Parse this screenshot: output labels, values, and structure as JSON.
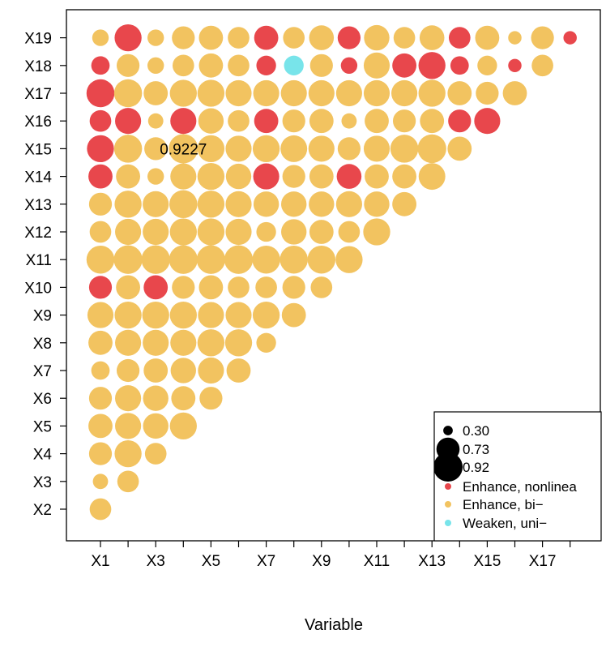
{
  "chart_data": {
    "type": "scatter",
    "xlabel": "Variable",
    "ylabel": "",
    "x_tick_labels": [
      "X1",
      "X3",
      "X5",
      "X7",
      "X9",
      "X11",
      "X13",
      "X15",
      "X17"
    ],
    "x_tick_count": 18,
    "y_tick_labels": [
      "X2",
      "X3",
      "X4",
      "X5",
      "X6",
      "X7",
      "X8",
      "X9",
      "X10",
      "X11",
      "X12",
      "X13",
      "X14",
      "X15",
      "X16",
      "X17",
      "X18",
      "X19"
    ],
    "annotation": {
      "text": "0.9227",
      "x": 4,
      "y": 15
    },
    "legend": {
      "placement": "bottom-right",
      "sizes": [
        {
          "label": "0.30",
          "value": 0.3
        },
        {
          "label": "0.73",
          "value": 0.73
        },
        {
          "label": "0.92",
          "value": 0.92
        }
      ],
      "categories": [
        {
          "key": "enh_nl",
          "label": "Enhance, nonlinea",
          "color": "#E8474C"
        },
        {
          "key": "enh_bi",
          "label": "Enhance, bi−",
          "color": "#F2C360"
        },
        {
          "key": "weak_uni",
          "label": "Weaken, uni−",
          "color": "#78E4EA"
        }
      ]
    },
    "points": [
      {
        "x": 1,
        "y": 2,
        "v": 0.68,
        "c": "enh_bi"
      },
      {
        "x": 1,
        "y": 3,
        "v": 0.48,
        "c": "enh_bi"
      },
      {
        "x": 2,
        "y": 3,
        "v": 0.68,
        "c": "enh_bi"
      },
      {
        "x": 1,
        "y": 4,
        "v": 0.72,
        "c": "enh_bi"
      },
      {
        "x": 2,
        "y": 4,
        "v": 0.85,
        "c": "enh_bi"
      },
      {
        "x": 3,
        "y": 4,
        "v": 0.68,
        "c": "enh_bi"
      },
      {
        "x": 1,
        "y": 5,
        "v": 0.76,
        "c": "enh_bi"
      },
      {
        "x": 2,
        "y": 5,
        "v": 0.82,
        "c": "enh_bi"
      },
      {
        "x": 3,
        "y": 5,
        "v": 0.8,
        "c": "enh_bi"
      },
      {
        "x": 4,
        "y": 5,
        "v": 0.85,
        "c": "enh_bi"
      },
      {
        "x": 1,
        "y": 6,
        "v": 0.72,
        "c": "enh_bi"
      },
      {
        "x": 2,
        "y": 6,
        "v": 0.82,
        "c": "enh_bi"
      },
      {
        "x": 3,
        "y": 6,
        "v": 0.8,
        "c": "enh_bi"
      },
      {
        "x": 4,
        "y": 6,
        "v": 0.76,
        "c": "enh_bi"
      },
      {
        "x": 5,
        "y": 6,
        "v": 0.72,
        "c": "enh_bi"
      },
      {
        "x": 1,
        "y": 7,
        "v": 0.58,
        "c": "enh_bi"
      },
      {
        "x": 2,
        "y": 7,
        "v": 0.72,
        "c": "enh_bi"
      },
      {
        "x": 3,
        "y": 7,
        "v": 0.76,
        "c": "enh_bi"
      },
      {
        "x": 4,
        "y": 7,
        "v": 0.8,
        "c": "enh_bi"
      },
      {
        "x": 5,
        "y": 7,
        "v": 0.82,
        "c": "enh_bi"
      },
      {
        "x": 6,
        "y": 7,
        "v": 0.76,
        "c": "enh_bi"
      },
      {
        "x": 1,
        "y": 8,
        "v": 0.76,
        "c": "enh_bi"
      },
      {
        "x": 2,
        "y": 8,
        "v": 0.82,
        "c": "enh_bi"
      },
      {
        "x": 3,
        "y": 8,
        "v": 0.82,
        "c": "enh_bi"
      },
      {
        "x": 4,
        "y": 8,
        "v": 0.82,
        "c": "enh_bi"
      },
      {
        "x": 5,
        "y": 8,
        "v": 0.85,
        "c": "enh_bi"
      },
      {
        "x": 6,
        "y": 8,
        "v": 0.85,
        "c": "enh_bi"
      },
      {
        "x": 7,
        "y": 8,
        "v": 0.62,
        "c": "enh_bi"
      },
      {
        "x": 1,
        "y": 9,
        "v": 0.82,
        "c": "enh_bi"
      },
      {
        "x": 2,
        "y": 9,
        "v": 0.85,
        "c": "enh_bi"
      },
      {
        "x": 3,
        "y": 9,
        "v": 0.85,
        "c": "enh_bi"
      },
      {
        "x": 4,
        "y": 9,
        "v": 0.85,
        "c": "enh_bi"
      },
      {
        "x": 5,
        "y": 9,
        "v": 0.82,
        "c": "enh_bi"
      },
      {
        "x": 6,
        "y": 9,
        "v": 0.82,
        "c": "enh_bi"
      },
      {
        "x": 7,
        "y": 9,
        "v": 0.85,
        "c": "enh_bi"
      },
      {
        "x": 8,
        "y": 9,
        "v": 0.76,
        "c": "enh_bi"
      },
      {
        "x": 1,
        "y": 10,
        "v": 0.72,
        "c": "enh_nl"
      },
      {
        "x": 2,
        "y": 10,
        "v": 0.76,
        "c": "enh_bi"
      },
      {
        "x": 3,
        "y": 10,
        "v": 0.76,
        "c": "enh_nl"
      },
      {
        "x": 4,
        "y": 10,
        "v": 0.72,
        "c": "enh_bi"
      },
      {
        "x": 5,
        "y": 10,
        "v": 0.76,
        "c": "enh_bi"
      },
      {
        "x": 6,
        "y": 10,
        "v": 0.68,
        "c": "enh_bi"
      },
      {
        "x": 7,
        "y": 10,
        "v": 0.68,
        "c": "enh_bi"
      },
      {
        "x": 8,
        "y": 10,
        "v": 0.72,
        "c": "enh_bi"
      },
      {
        "x": 9,
        "y": 10,
        "v": 0.68,
        "c": "enh_bi"
      },
      {
        "x": 1,
        "y": 11,
        "v": 0.88,
        "c": "enh_bi"
      },
      {
        "x": 2,
        "y": 11,
        "v": 0.9,
        "c": "enh_bi"
      },
      {
        "x": 3,
        "y": 11,
        "v": 0.9,
        "c": "enh_bi"
      },
      {
        "x": 4,
        "y": 11,
        "v": 0.9,
        "c": "enh_bi"
      },
      {
        "x": 5,
        "y": 11,
        "v": 0.9,
        "c": "enh_bi"
      },
      {
        "x": 6,
        "y": 11,
        "v": 0.9,
        "c": "enh_bi"
      },
      {
        "x": 7,
        "y": 11,
        "v": 0.88,
        "c": "enh_bi"
      },
      {
        "x": 8,
        "y": 11,
        "v": 0.88,
        "c": "enh_bi"
      },
      {
        "x": 9,
        "y": 11,
        "v": 0.88,
        "c": "enh_bi"
      },
      {
        "x": 10,
        "y": 11,
        "v": 0.85,
        "c": "enh_bi"
      },
      {
        "x": 1,
        "y": 12,
        "v": 0.68,
        "c": "enh_bi"
      },
      {
        "x": 2,
        "y": 12,
        "v": 0.82,
        "c": "enh_bi"
      },
      {
        "x": 3,
        "y": 12,
        "v": 0.82,
        "c": "enh_bi"
      },
      {
        "x": 4,
        "y": 12,
        "v": 0.85,
        "c": "enh_bi"
      },
      {
        "x": 5,
        "y": 12,
        "v": 0.85,
        "c": "enh_bi"
      },
      {
        "x": 6,
        "y": 12,
        "v": 0.82,
        "c": "enh_bi"
      },
      {
        "x": 7,
        "y": 12,
        "v": 0.62,
        "c": "enh_bi"
      },
      {
        "x": 8,
        "y": 12,
        "v": 0.8,
        "c": "enh_bi"
      },
      {
        "x": 9,
        "y": 12,
        "v": 0.76,
        "c": "enh_bi"
      },
      {
        "x": 10,
        "y": 12,
        "v": 0.68,
        "c": "enh_bi"
      },
      {
        "x": 11,
        "y": 12,
        "v": 0.85,
        "c": "enh_bi"
      },
      {
        "x": 1,
        "y": 13,
        "v": 0.72,
        "c": "enh_bi"
      },
      {
        "x": 2,
        "y": 13,
        "v": 0.85,
        "c": "enh_bi"
      },
      {
        "x": 3,
        "y": 13,
        "v": 0.82,
        "c": "enh_bi"
      },
      {
        "x": 4,
        "y": 13,
        "v": 0.88,
        "c": "enh_bi"
      },
      {
        "x": 5,
        "y": 13,
        "v": 0.85,
        "c": "enh_bi"
      },
      {
        "x": 6,
        "y": 13,
        "v": 0.82,
        "c": "enh_bi"
      },
      {
        "x": 7,
        "y": 13,
        "v": 0.8,
        "c": "enh_bi"
      },
      {
        "x": 8,
        "y": 13,
        "v": 0.8,
        "c": "enh_bi"
      },
      {
        "x": 9,
        "y": 13,
        "v": 0.8,
        "c": "enh_bi"
      },
      {
        "x": 10,
        "y": 13,
        "v": 0.82,
        "c": "enh_bi"
      },
      {
        "x": 11,
        "y": 13,
        "v": 0.8,
        "c": "enh_bi"
      },
      {
        "x": 12,
        "y": 13,
        "v": 0.76,
        "c": "enh_bi"
      },
      {
        "x": 1,
        "y": 14,
        "v": 0.76,
        "c": "enh_nl"
      },
      {
        "x": 2,
        "y": 14,
        "v": 0.76,
        "c": "enh_bi"
      },
      {
        "x": 3,
        "y": 14,
        "v": 0.52,
        "c": "enh_bi"
      },
      {
        "x": 4,
        "y": 14,
        "v": 0.82,
        "c": "enh_bi"
      },
      {
        "x": 5,
        "y": 14,
        "v": 0.85,
        "c": "enh_bi"
      },
      {
        "x": 6,
        "y": 14,
        "v": 0.8,
        "c": "enh_bi"
      },
      {
        "x": 7,
        "y": 14,
        "v": 0.82,
        "c": "enh_nl"
      },
      {
        "x": 8,
        "y": 14,
        "v": 0.72,
        "c": "enh_bi"
      },
      {
        "x": 9,
        "y": 14,
        "v": 0.76,
        "c": "enh_bi"
      },
      {
        "x": 10,
        "y": 14,
        "v": 0.78,
        "c": "enh_nl"
      },
      {
        "x": 11,
        "y": 14,
        "v": 0.76,
        "c": "enh_bi"
      },
      {
        "x": 12,
        "y": 14,
        "v": 0.76,
        "c": "enh_bi"
      },
      {
        "x": 13,
        "y": 14,
        "v": 0.84,
        "c": "enh_bi"
      },
      {
        "x": 1,
        "y": 15,
        "v": 0.85,
        "c": "enh_nl"
      },
      {
        "x": 2,
        "y": 15,
        "v": 0.88,
        "c": "enh_bi"
      },
      {
        "x": 3,
        "y": 15,
        "v": 0.72,
        "c": "enh_bi"
      },
      {
        "x": 4,
        "y": 15,
        "v": 0.9227,
        "c": "enh_bi"
      },
      {
        "x": 5,
        "y": 15,
        "v": 0.85,
        "c": "enh_bi"
      },
      {
        "x": 6,
        "y": 15,
        "v": 0.82,
        "c": "enh_bi"
      },
      {
        "x": 7,
        "y": 15,
        "v": 0.85,
        "c": "enh_bi"
      },
      {
        "x": 8,
        "y": 15,
        "v": 0.84,
        "c": "enh_bi"
      },
      {
        "x": 9,
        "y": 15,
        "v": 0.82,
        "c": "enh_bi"
      },
      {
        "x": 10,
        "y": 15,
        "v": 0.72,
        "c": "enh_bi"
      },
      {
        "x": 11,
        "y": 15,
        "v": 0.82,
        "c": "enh_bi"
      },
      {
        "x": 12,
        "y": 15,
        "v": 0.88,
        "c": "enh_bi"
      },
      {
        "x": 13,
        "y": 15,
        "v": 0.9,
        "c": "enh_bi"
      },
      {
        "x": 14,
        "y": 15,
        "v": 0.76,
        "c": "enh_bi"
      },
      {
        "x": 1,
        "y": 16,
        "v": 0.68,
        "c": "enh_nl"
      },
      {
        "x": 2,
        "y": 16,
        "v": 0.82,
        "c": "enh_nl"
      },
      {
        "x": 3,
        "y": 16,
        "v": 0.48,
        "c": "enh_bi"
      },
      {
        "x": 4,
        "y": 16,
        "v": 0.82,
        "c": "enh_nl"
      },
      {
        "x": 5,
        "y": 16,
        "v": 0.8,
        "c": "enh_bi"
      },
      {
        "x": 6,
        "y": 16,
        "v": 0.68,
        "c": "enh_bi"
      },
      {
        "x": 7,
        "y": 16,
        "v": 0.76,
        "c": "enh_nl"
      },
      {
        "x": 8,
        "y": 16,
        "v": 0.72,
        "c": "enh_bi"
      },
      {
        "x": 9,
        "y": 16,
        "v": 0.76,
        "c": "enh_bi"
      },
      {
        "x": 10,
        "y": 16,
        "v": 0.48,
        "c": "enh_bi"
      },
      {
        "x": 11,
        "y": 16,
        "v": 0.76,
        "c": "enh_bi"
      },
      {
        "x": 12,
        "y": 16,
        "v": 0.72,
        "c": "enh_bi"
      },
      {
        "x": 13,
        "y": 16,
        "v": 0.76,
        "c": "enh_bi"
      },
      {
        "x": 14,
        "y": 16,
        "v": 0.72,
        "c": "enh_nl"
      },
      {
        "x": 15,
        "y": 16,
        "v": 0.82,
        "c": "enh_nl"
      },
      {
        "x": 1,
        "y": 17,
        "v": 0.88,
        "c": "enh_nl"
      },
      {
        "x": 2,
        "y": 17,
        "v": 0.88,
        "c": "enh_bi"
      },
      {
        "x": 3,
        "y": 17,
        "v": 0.76,
        "c": "enh_bi"
      },
      {
        "x": 4,
        "y": 17,
        "v": 0.85,
        "c": "enh_bi"
      },
      {
        "x": 5,
        "y": 17,
        "v": 0.85,
        "c": "enh_bi"
      },
      {
        "x": 6,
        "y": 17,
        "v": 0.82,
        "c": "enh_bi"
      },
      {
        "x": 7,
        "y": 17,
        "v": 0.82,
        "c": "enh_bi"
      },
      {
        "x": 8,
        "y": 17,
        "v": 0.82,
        "c": "enh_bi"
      },
      {
        "x": 9,
        "y": 17,
        "v": 0.82,
        "c": "enh_bi"
      },
      {
        "x": 10,
        "y": 17,
        "v": 0.82,
        "c": "enh_bi"
      },
      {
        "x": 11,
        "y": 17,
        "v": 0.82,
        "c": "enh_bi"
      },
      {
        "x": 12,
        "y": 17,
        "v": 0.82,
        "c": "enh_bi"
      },
      {
        "x": 13,
        "y": 17,
        "v": 0.85,
        "c": "enh_bi"
      },
      {
        "x": 14,
        "y": 17,
        "v": 0.76,
        "c": "enh_bi"
      },
      {
        "x": 15,
        "y": 17,
        "v": 0.72,
        "c": "enh_bi"
      },
      {
        "x": 16,
        "y": 17,
        "v": 0.76,
        "c": "enh_bi"
      },
      {
        "x": 1,
        "y": 18,
        "v": 0.58,
        "c": "enh_nl"
      },
      {
        "x": 2,
        "y": 18,
        "v": 0.72,
        "c": "enh_bi"
      },
      {
        "x": 3,
        "y": 18,
        "v": 0.52,
        "c": "enh_bi"
      },
      {
        "x": 4,
        "y": 18,
        "v": 0.68,
        "c": "enh_bi"
      },
      {
        "x": 5,
        "y": 18,
        "v": 0.76,
        "c": "enh_bi"
      },
      {
        "x": 6,
        "y": 18,
        "v": 0.68,
        "c": "enh_bi"
      },
      {
        "x": 7,
        "y": 18,
        "v": 0.62,
        "c": "enh_nl"
      },
      {
        "x": 8,
        "y": 18,
        "v": 0.62,
        "c": "weak_uni"
      },
      {
        "x": 9,
        "y": 18,
        "v": 0.72,
        "c": "enh_bi"
      },
      {
        "x": 10,
        "y": 18,
        "v": 0.52,
        "c": "enh_nl"
      },
      {
        "x": 11,
        "y": 18,
        "v": 0.82,
        "c": "enh_bi"
      },
      {
        "x": 12,
        "y": 18,
        "v": 0.76,
        "c": "enh_nl"
      },
      {
        "x": 13,
        "y": 18,
        "v": 0.85,
        "c": "enh_nl"
      },
      {
        "x": 14,
        "y": 18,
        "v": 0.58,
        "c": "enh_nl"
      },
      {
        "x": 15,
        "y": 18,
        "v": 0.62,
        "c": "enh_bi"
      },
      {
        "x": 16,
        "y": 18,
        "v": 0.42,
        "c": "enh_nl"
      },
      {
        "x": 17,
        "y": 18,
        "v": 0.68,
        "c": "enh_bi"
      },
      {
        "x": 1,
        "y": 19,
        "v": 0.52,
        "c": "enh_bi"
      },
      {
        "x": 2,
        "y": 19,
        "v": 0.85,
        "c": "enh_nl"
      },
      {
        "x": 3,
        "y": 19,
        "v": 0.52,
        "c": "enh_bi"
      },
      {
        "x": 4,
        "y": 19,
        "v": 0.72,
        "c": "enh_bi"
      },
      {
        "x": 5,
        "y": 19,
        "v": 0.76,
        "c": "enh_bi"
      },
      {
        "x": 6,
        "y": 19,
        "v": 0.68,
        "c": "enh_bi"
      },
      {
        "x": 7,
        "y": 19,
        "v": 0.76,
        "c": "enh_nl"
      },
      {
        "x": 8,
        "y": 19,
        "v": 0.68,
        "c": "enh_bi"
      },
      {
        "x": 9,
        "y": 19,
        "v": 0.78,
        "c": "enh_bi"
      },
      {
        "x": 10,
        "y": 19,
        "v": 0.72,
        "c": "enh_nl"
      },
      {
        "x": 11,
        "y": 19,
        "v": 0.8,
        "c": "enh_bi"
      },
      {
        "x": 12,
        "y": 19,
        "v": 0.68,
        "c": "enh_bi"
      },
      {
        "x": 13,
        "y": 19,
        "v": 0.78,
        "c": "enh_bi"
      },
      {
        "x": 14,
        "y": 19,
        "v": 0.68,
        "c": "enh_nl"
      },
      {
        "x": 15,
        "y": 19,
        "v": 0.76,
        "c": "enh_bi"
      },
      {
        "x": 16,
        "y": 19,
        "v": 0.42,
        "c": "enh_bi"
      },
      {
        "x": 17,
        "y": 19,
        "v": 0.72,
        "c": "enh_bi"
      },
      {
        "x": 18,
        "y": 19,
        "v": 0.42,
        "c": "enh_nl"
      }
    ]
  }
}
